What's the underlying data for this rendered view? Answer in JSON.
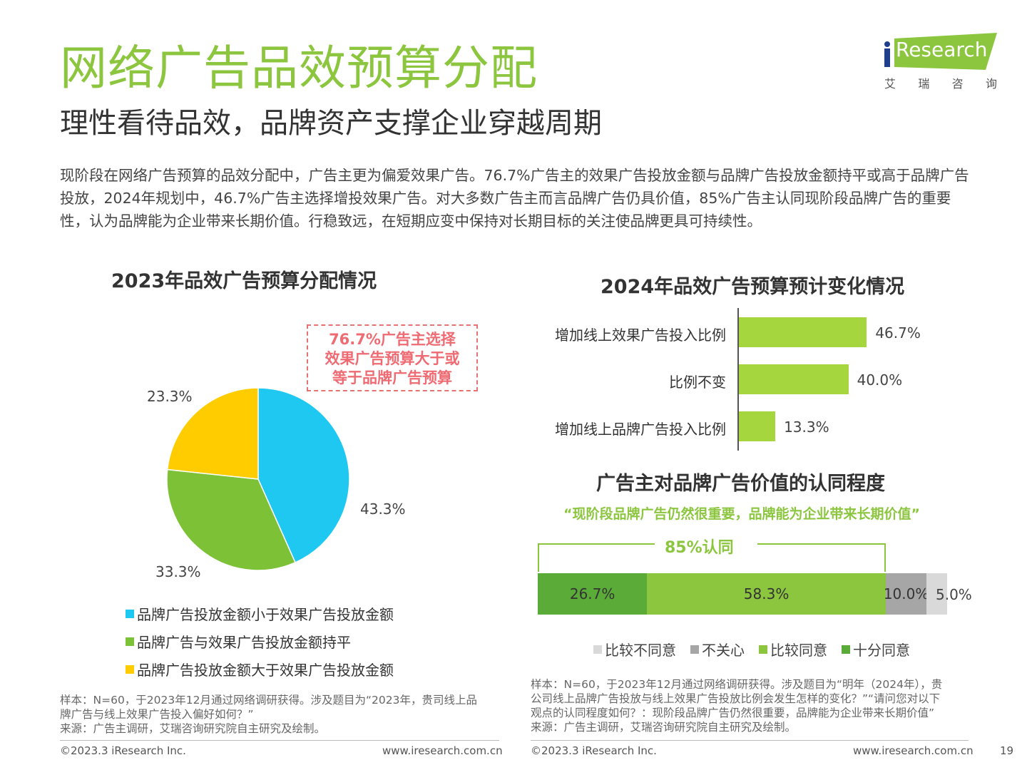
{
  "header": {
    "title": "网络广告品效预算分配",
    "subtitle": "理性看待品效，品牌资产支撑企业穿越周期",
    "summary": "现阶段在网络广告预算的品效分配中，广告主更为偏爱效果广告。76.7%广告主的效果广告投放金额与品牌广告投放金额持平或高于品牌广告投放，2024年规划中，46.7%广告主选择增投效果广告。对大多数广告主而言品牌广告仍具价值，85%广告主认同现阶段品牌广告的重要性，认为品牌能为企业带来长期价值。行稳致远，在短期应变中保持对长期目标的关注使品牌更具可持续性。"
  },
  "logo": {
    "wordmark": "Research",
    "cn_chars": [
      "艾",
      "瑞",
      "咨",
      "询"
    ],
    "color": "#8cc63f"
  },
  "callout": {
    "lines": [
      "76.7%广告主选择",
      "效果广告预算大于或",
      "等于品牌广告预算"
    ]
  },
  "pie_notes": [
    "样本：N=60，于2023年12月通过网络调研获得。涉及题目为“2023年，贵司线上品",
    "牌广告与线上效果广告投入偏好如何？”",
    "来源：广告主调研，艾瑞咨询研究院自主研究及绘制。"
  ],
  "bar_notes": [
    "样本：N=60，于2023年12月通过网络调研获得。涉及题目为“明年（2024年），贵",
    "公司线上品牌广告投放与线上效果广告投放比例会发生怎样的变化？”“请问您对以下",
    "观点的认同程度如何？：现阶段品牌广告仍然很重要，品牌能为企业带来长期价值”",
    "来源：广告主调研，艾瑞咨询研究院自主研究及绘制。"
  ],
  "footer": {
    "left_copyright": "©2023.3 iResearch Inc.",
    "left_url": "www.iresearch.com.cn",
    "right_copyright": "©2023.3 iResearch Inc.",
    "right_url": "www.iresearch.com.cn",
    "page_number": "19"
  },
  "chart_data": [
    {
      "type": "pie",
      "title": "2023年品效广告预算分配情况",
      "categories": [
        "品牌广告投放金额小于效果广告投放金额",
        "品牌广告与效果广告投放金额持平",
        "品牌广告投放金额大于效果广告投放金额"
      ],
      "values": [
        43.3,
        33.3,
        23.3
      ],
      "labels": [
        "43.3%",
        "33.3%",
        "23.3%"
      ],
      "colors": [
        "#1ec8f0",
        "#7dc136",
        "#ffcc00"
      ],
      "legend": "bottom"
    },
    {
      "type": "bar",
      "orientation": "horizontal",
      "title": "2024年品效广告预算预计变化情况",
      "categories": [
        "增加线上效果广告投入比例",
        "比例不变",
        "增加线上品牌广告投入比例"
      ],
      "values": [
        46.7,
        40.0,
        13.3
      ],
      "labels": [
        "46.7%",
        "40.0%",
        "13.3%"
      ],
      "color": "#a5d63d",
      "xlim": [
        0,
        100
      ]
    },
    {
      "type": "bar",
      "orientation": "stacked-horizontal",
      "title": "广告主对品牌广告价值的认同程度",
      "quote": "“现阶段品牌广告仍然很重要，品牌能为企业带来长期价值”",
      "bracket_label": "85%认同",
      "series": [
        {
          "name": "十分同意",
          "value": 26.7,
          "label": "26.7%",
          "color": "#5aab38",
          "text_color": "#333333"
        },
        {
          "name": "比较同意",
          "value": 58.3,
          "label": "58.3%",
          "color": "#8cc63f",
          "text_color": "#333333"
        },
        {
          "name": "不关心",
          "value": 10.0,
          "label": "10.0%",
          "color": "#a6a6a6",
          "text_color": "#333333"
        },
        {
          "name": "比较不同意",
          "value": 5.0,
          "label": "5.0%",
          "color": "#d9d9d9",
          "text_color": "#444444"
        }
      ],
      "legend_order": [
        "比较不同意",
        "不关心",
        "比较同意",
        "十分同意"
      ],
      "legend": "bottom"
    }
  ]
}
